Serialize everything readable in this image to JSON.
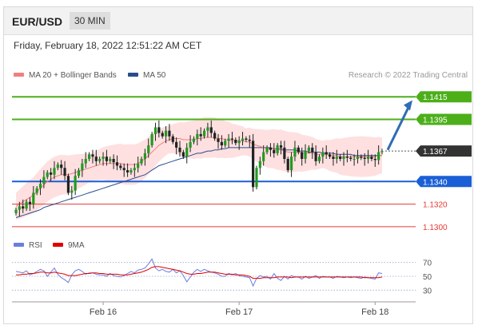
{
  "header": {
    "symbol": "EUR/USD",
    "timeframe": "30 MIN"
  },
  "datetime": "Friday, February 18, 2022 12:51:22 AM CET",
  "legend": {
    "ma20": "MA 20 + Bollinger Bands",
    "ma50": "MA 50"
  },
  "credit": "Research © 2022 Trading Central",
  "colors": {
    "ma20": "#f08080",
    "ma50": "#2a4d8c",
    "resistance": "#4caf1a",
    "support_blue": "#1a5fd6",
    "support_red": "#e53935",
    "arrow": "#2f6db3",
    "bands": "#fdd5d5",
    "rsi": "#6a7ee0",
    "rsi_ma": "#e00000"
  },
  "chart_data": [
    {
      "type": "candlestick",
      "title": "EUR/USD",
      "timeframe": "30 MIN",
      "ylim": [
        1.129,
        1.143
      ],
      "x_ticks": [
        "Feb 16",
        "Feb 17",
        "Feb 18"
      ],
      "x_tick_index": [
        25,
        64,
        103
      ],
      "current_price": "1.1367",
      "projection_target": "1.1415",
      "levels": [
        {
          "label": "1.1415",
          "value": 1.1415,
          "kind": "resistance"
        },
        {
          "label": "1.1395",
          "value": 1.1395,
          "kind": "resistance"
        },
        {
          "label": "1.1340",
          "value": 1.134,
          "kind": "support_blue"
        },
        {
          "label": "1.1320",
          "value": 1.132,
          "kind": "support_red"
        },
        {
          "label": "1.1300",
          "value": 1.13,
          "kind": "support_red"
        }
      ],
      "closes": [
        1.1315,
        1.1318,
        1.1316,
        1.1322,
        1.132,
        1.133,
        1.1334,
        1.1338,
        1.1344,
        1.1348,
        1.1346,
        1.1352,
        1.1355,
        1.1352,
        1.1345,
        1.133,
        1.1332,
        1.1345,
        1.135,
        1.1356,
        1.136,
        1.1364,
        1.1362,
        1.1358,
        1.136,
        1.1362,
        1.1358,
        1.136,
        1.1357,
        1.1354,
        1.1352,
        1.135,
        1.1348,
        1.135,
        1.1352,
        1.1356,
        1.136,
        1.1365,
        1.1372,
        1.1382,
        1.1388,
        1.1383,
        1.138,
        1.1385,
        1.138,
        1.1375,
        1.137,
        1.1366,
        1.1362,
        1.137,
        1.1375,
        1.1378,
        1.1382,
        1.138,
        1.1385,
        1.1388,
        1.1383,
        1.1378,
        1.1375,
        1.1372,
        1.1376,
        1.1378,
        1.1377,
        1.1374,
        1.1376,
        1.1378,
        1.1377,
        1.1376,
        1.1335,
        1.1352,
        1.1358,
        1.1366,
        1.137,
        1.1368,
        1.1365,
        1.1372,
        1.137,
        1.136,
        1.135,
        1.1362,
        1.137,
        1.1366,
        1.136,
        1.1367,
        1.137,
        1.1366,
        1.1358,
        1.1362,
        1.1366,
        1.1364,
        1.1362,
        1.136,
        1.1362,
        1.136,
        1.1362,
        1.1361,
        1.136,
        1.136,
        1.1362,
        1.1361,
        1.136,
        1.1362,
        1.136,
        1.1359,
        1.1366,
        1.1367
      ],
      "ma20": [
        1.1318,
        1.132,
        1.1322,
        1.1324,
        1.1326,
        1.1328,
        1.1331,
        1.1334,
        1.1337,
        1.134,
        1.1342,
        1.1344,
        1.1345,
        1.1346,
        1.1346,
        1.1346,
        1.1347,
        1.1348,
        1.1349,
        1.135,
        1.1351,
        1.1352,
        1.1353,
        1.1354,
        1.1355,
        1.1356,
        1.1356,
        1.1356,
        1.1356,
        1.1356,
        1.1356,
        1.1355,
        1.1355,
        1.1355,
        1.1355,
        1.1356,
        1.1358,
        1.136,
        1.1363,
        1.1366,
        1.1369,
        1.1372,
        1.1374,
        1.1376,
        1.1377,
        1.1378,
        1.1378,
        1.1378,
        1.1377,
        1.1377,
        1.1377,
        1.1377,
        1.1378,
        1.1378,
        1.1379,
        1.1379,
        1.1379,
        1.1379,
        1.1378,
        1.1378,
        1.1377,
        1.1377,
        1.1376,
        1.1376,
        1.1376,
        1.1376,
        1.1375,
        1.1375,
        1.1373,
        1.1372,
        1.1371,
        1.137,
        1.1369,
        1.1369,
        1.1369,
        1.1368,
        1.1368,
        1.1367,
        1.1366,
        1.1366,
        1.1366,
        1.1366,
        1.1365,
        1.1365,
        1.1365,
        1.1365,
        1.1364,
        1.1364,
        1.1364,
        1.1364,
        1.1363,
        1.1363,
        1.1363,
        1.1362,
        1.1362,
        1.1362,
        1.1362,
        1.1362,
        1.1362,
        1.1362,
        1.1362,
        1.1362,
        1.1362,
        1.1362,
        1.1363,
        1.1363
      ],
      "ma50": [
        1.1308,
        1.1309,
        1.131,
        1.1311,
        1.1312,
        1.1313,
        1.1314,
        1.1315,
        1.1317,
        1.1318,
        1.1319,
        1.132,
        1.1321,
        1.1322,
        1.1323,
        1.1324,
        1.1325,
        1.1326,
        1.1327,
        1.1328,
        1.1329,
        1.133,
        1.1331,
        1.1332,
        1.1333,
        1.1334,
        1.1335,
        1.1336,
        1.1337,
        1.1338,
        1.1339,
        1.134,
        1.1341,
        1.1342,
        1.1343,
        1.1344,
        1.1345,
        1.1346,
        1.1348,
        1.135,
        1.1352,
        1.1354,
        1.1355,
        1.1356,
        1.1357,
        1.1358,
        1.1359,
        1.136,
        1.1361,
        1.1362,
        1.1363,
        1.1364,
        1.1365,
        1.1365,
        1.1366,
        1.1367,
        1.1367,
        1.1368,
        1.1368,
        1.1369,
        1.1369,
        1.137,
        1.137,
        1.137,
        1.137,
        1.137,
        1.137,
        1.137,
        1.137,
        1.137,
        1.137,
        1.137,
        1.137,
        1.137,
        1.1369,
        1.1369,
        1.1369,
        1.1368,
        1.1368,
        1.1368,
        1.1368,
        1.1367,
        1.1367,
        1.1367,
        1.1366,
        1.1366,
        1.1366,
        1.1366,
        1.1365,
        1.1365,
        1.1365,
        1.1365,
        1.1364,
        1.1364,
        1.1364,
        1.1364,
        1.1364,
        1.1363,
        1.1363,
        1.1363,
        1.1363,
        1.1363,
        1.1363,
        1.1363,
        1.1363,
        1.1363
      ]
    },
    {
      "type": "line",
      "title": "RSI",
      "series": [
        {
          "name": "RSI"
        },
        {
          "name": "9MA"
        }
      ],
      "ylim": [
        20,
        80
      ],
      "y_ticks": [
        "70",
        "50",
        "30"
      ],
      "rsi": [
        57,
        56,
        55,
        58,
        52,
        54,
        57,
        60,
        58,
        50,
        56,
        62,
        53,
        48,
        45,
        41,
        52,
        58,
        60,
        57,
        53,
        55,
        55,
        53,
        52,
        52,
        50,
        54,
        51,
        50,
        49,
        51,
        54,
        57,
        55,
        59,
        60,
        62,
        68,
        75,
        62,
        58,
        60,
        57,
        56,
        60,
        55,
        58,
        51,
        42,
        49,
        56,
        60,
        57,
        60,
        58,
        56,
        55,
        53,
        50,
        50,
        54,
        52,
        54,
        51,
        50,
        49,
        48,
        36,
        47,
        51,
        49,
        50,
        46,
        54,
        47,
        44,
        50,
        46,
        51,
        49,
        49,
        46,
        50,
        47,
        49,
        51,
        47,
        50,
        49,
        49,
        47,
        50,
        49,
        48,
        49,
        48,
        49,
        48,
        47,
        49,
        48,
        47,
        46,
        55,
        54
      ],
      "rsi_ma": [
        52,
        52,
        53,
        53,
        54,
        54,
        55,
        56,
        56,
        55,
        55,
        56,
        55,
        54,
        53,
        51,
        51,
        51,
        52,
        53,
        54,
        54,
        55,
        55,
        54,
        54,
        53,
        53,
        53,
        53,
        52,
        52,
        52,
        53,
        54,
        55,
        56,
        58,
        60,
        63,
        64,
        64,
        63,
        62,
        61,
        60,
        59,
        58,
        56,
        54,
        53,
        53,
        54,
        54,
        55,
        56,
        56,
        56,
        55,
        54,
        53,
        53,
        53,
        52,
        52,
        52,
        51,
        50,
        47,
        47,
        47,
        48,
        48,
        48,
        48,
        49,
        49,
        49,
        49,
        48,
        49,
        49,
        49,
        49,
        49,
        49,
        49,
        49,
        49,
        49,
        49,
        49,
        49,
        49,
        49,
        49,
        49,
        49,
        49,
        49,
        48,
        48,
        48,
        48,
        48,
        49
      ]
    }
  ]
}
